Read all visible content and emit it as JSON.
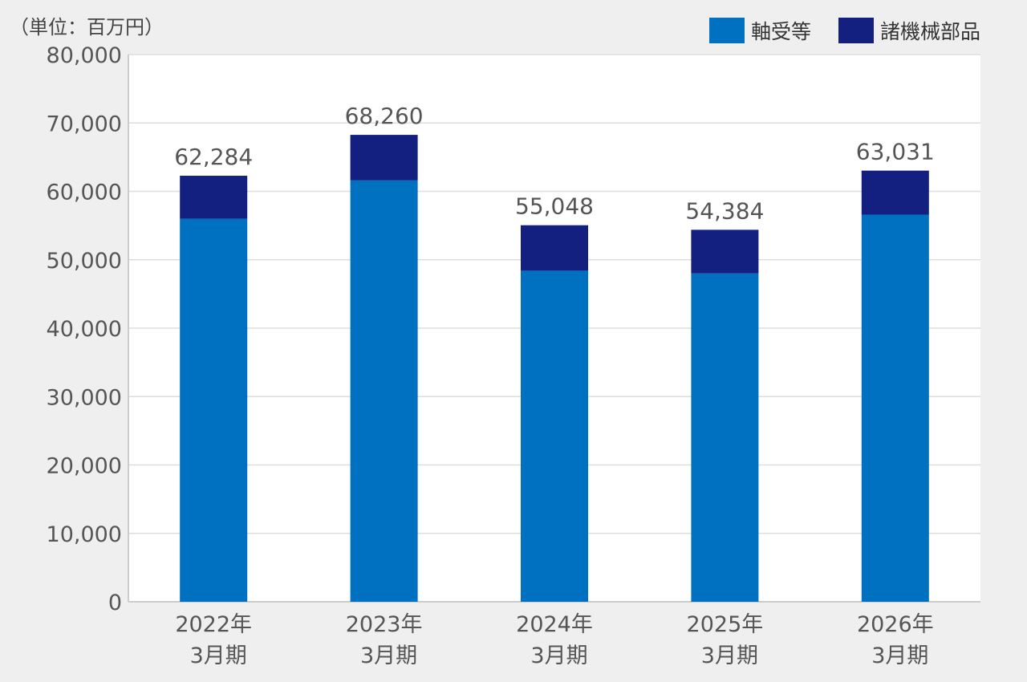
{
  "chart_data": {
    "type": "bar",
    "stacked": true,
    "unit_label": "（単位：百万円）",
    "categories": [
      [
        "2022年",
        "3月期"
      ],
      [
        "2023年",
        "3月期"
      ],
      [
        "2024年",
        "3月期"
      ],
      [
        "2025年",
        "3月期"
      ],
      [
        "2026年",
        "3月期"
      ]
    ],
    "series": [
      {
        "name": "軸受等",
        "color": "#0070c0",
        "values": [
          56000,
          61600,
          48400,
          48000,
          56600
        ]
      },
      {
        "name": "諸機械部品",
        "color": "#13207f",
        "values": [
          6284,
          6660,
          6648,
          6384,
          6431
        ]
      }
    ],
    "totals": [
      "62,284",
      "68,260",
      "55,048",
      "54,384",
      "63,031"
    ],
    "ylim": [
      0,
      80000
    ],
    "yticks": [
      "0",
      "10,000",
      "20,000",
      "30,000",
      "40,000",
      "50,000",
      "60,000",
      "70,000",
      "80,000"
    ],
    "grid": true,
    "legend_position": "top-right"
  }
}
